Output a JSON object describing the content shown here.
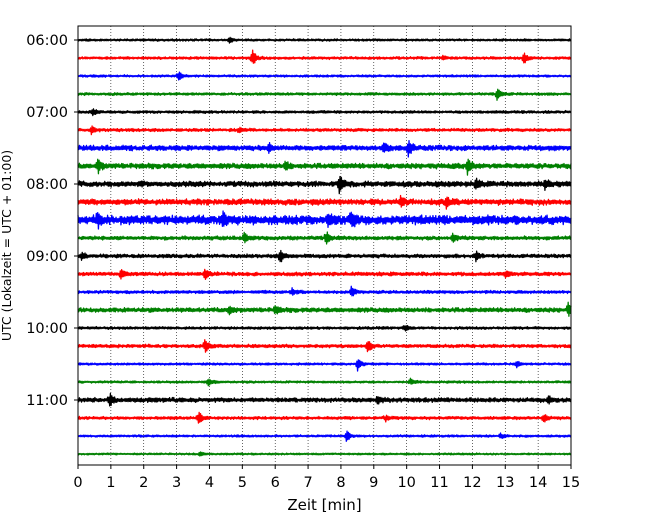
{
  "chart_data": {
    "type": "line",
    "xlabel": "Zeit  [min]",
    "ylabel": "UTC (Lokalzeit = UTC + 01:00)",
    "xlim": [
      0,
      15
    ],
    "x_ticks": [
      "0",
      "1",
      "2",
      "3",
      "4",
      "5",
      "6",
      "7",
      "8",
      "9",
      "10",
      "11",
      "12",
      "13",
      "14",
      "15"
    ],
    "y_tick_labels": [
      "06:00",
      "07:00",
      "08:00",
      "09:00",
      "10:00",
      "11:00"
    ],
    "grid_x": true,
    "trace_interval_min": 15,
    "colors": [
      "#000000",
      "#ff0000",
      "#0000ff",
      "#008000"
    ],
    "traces": [
      {
        "start": "06:00",
        "color": "#000000",
        "amp": 0.06,
        "events": [
          {
            "t": 4.6,
            "a": 0.2
          }
        ]
      },
      {
        "start": "06:15",
        "color": "#ff0000",
        "amp": 0.07,
        "events": [
          {
            "t": 5.3,
            "a": 0.65
          },
          {
            "t": 13.55,
            "a": 0.45
          },
          {
            "t": 11.1,
            "a": 0.15
          }
        ]
      },
      {
        "start": "06:30",
        "color": "#0000ff",
        "amp": 0.06,
        "events": [
          {
            "t": 3.05,
            "a": 0.35
          }
        ]
      },
      {
        "start": "06:45",
        "color": "#008000",
        "amp": 0.07,
        "events": [
          {
            "t": 12.75,
            "a": 0.55
          }
        ]
      },
      {
        "start": "07:00",
        "color": "#000000",
        "amp": 0.07,
        "events": [
          {
            "t": 0.45,
            "a": 0.3
          }
        ]
      },
      {
        "start": "07:15",
        "color": "#ff0000",
        "amp": 0.08,
        "events": [
          {
            "t": 0.4,
            "a": 0.3
          },
          {
            "t": 4.9,
            "a": 0.2
          }
        ]
      },
      {
        "start": "07:30",
        "color": "#0000ff",
        "amp": 0.14,
        "events": [
          {
            "t": 10.05,
            "a": 0.6
          },
          {
            "t": 5.8,
            "a": 0.3
          },
          {
            "t": 9.3,
            "a": 0.35
          }
        ]
      },
      {
        "start": "07:45",
        "color": "#008000",
        "amp": 0.14,
        "events": [
          {
            "t": 0.6,
            "a": 0.5
          },
          {
            "t": 11.85,
            "a": 0.6
          },
          {
            "t": 6.3,
            "a": 0.3
          }
        ]
      },
      {
        "start": "08:00",
        "color": "#000000",
        "amp": 0.15,
        "events": [
          {
            "t": 7.95,
            "a": 0.6
          },
          {
            "t": 12.1,
            "a": 0.35
          },
          {
            "t": 14.2,
            "a": 0.35
          }
        ]
      },
      {
        "start": "08:15",
        "color": "#ff0000",
        "amp": 0.16,
        "events": [
          {
            "t": 9.8,
            "a": 0.4
          },
          {
            "t": 11.2,
            "a": 0.4
          }
        ]
      },
      {
        "start": "08:30",
        "color": "#0000ff",
        "amp": 0.25,
        "events": [
          {
            "t": 8.3,
            "a": 0.7
          },
          {
            "t": 0.6,
            "a": 0.55
          },
          {
            "t": 4.4,
            "a": 0.5
          },
          {
            "t": 7.6,
            "a": 0.4
          }
        ]
      },
      {
        "start": "08:45",
        "color": "#008000",
        "amp": 0.1,
        "events": [
          {
            "t": 7.55,
            "a": 0.55
          },
          {
            "t": 5.05,
            "a": 0.45
          },
          {
            "t": 11.4,
            "a": 0.3
          }
        ]
      },
      {
        "start": "09:00",
        "color": "#000000",
        "amp": 0.1,
        "events": [
          {
            "t": 6.15,
            "a": 0.5
          },
          {
            "t": 12.1,
            "a": 0.35
          },
          {
            "t": 0.1,
            "a": 0.25
          }
        ]
      },
      {
        "start": "09:15",
        "color": "#ff0000",
        "amp": 0.1,
        "events": [
          {
            "t": 3.85,
            "a": 0.5
          },
          {
            "t": 13.0,
            "a": 0.3
          },
          {
            "t": 1.3,
            "a": 0.35
          }
        ]
      },
      {
        "start": "09:30",
        "color": "#0000ff",
        "amp": 0.08,
        "events": [
          {
            "t": 8.3,
            "a": 0.5
          },
          {
            "t": 6.5,
            "a": 0.3
          }
        ]
      },
      {
        "start": "09:45",
        "color": "#008000",
        "amp": 0.12,
        "events": [
          {
            "t": 14.9,
            "a": 0.55
          },
          {
            "t": 4.6,
            "a": 0.35
          },
          {
            "t": 6.0,
            "a": 0.3
          }
        ]
      },
      {
        "start": "10:00",
        "color": "#000000",
        "amp": 0.07,
        "events": [
          {
            "t": 9.95,
            "a": 0.25
          }
        ]
      },
      {
        "start": "10:15",
        "color": "#ff0000",
        "amp": 0.09,
        "events": [
          {
            "t": 3.85,
            "a": 0.55
          },
          {
            "t": 8.8,
            "a": 0.55
          }
        ]
      },
      {
        "start": "10:30",
        "color": "#0000ff",
        "amp": 0.06,
        "events": [
          {
            "t": 8.5,
            "a": 0.5
          },
          {
            "t": 13.35,
            "a": 0.25
          }
        ]
      },
      {
        "start": "10:45",
        "color": "#008000",
        "amp": 0.06,
        "events": [
          {
            "t": 3.95,
            "a": 0.35
          },
          {
            "t": 10.1,
            "a": 0.25
          }
        ]
      },
      {
        "start": "11:00",
        "color": "#000000",
        "amp": 0.12,
        "events": [
          {
            "t": 0.95,
            "a": 0.55
          },
          {
            "t": 9.1,
            "a": 0.3
          },
          {
            "t": 14.3,
            "a": 0.3
          }
        ]
      },
      {
        "start": "11:15",
        "color": "#ff0000",
        "amp": 0.08,
        "events": [
          {
            "t": 3.65,
            "a": 0.55
          },
          {
            "t": 14.15,
            "a": 0.35
          },
          {
            "t": 9.35,
            "a": 0.25
          }
        ]
      },
      {
        "start": "11:30",
        "color": "#0000ff",
        "amp": 0.06,
        "events": [
          {
            "t": 8.15,
            "a": 0.45
          },
          {
            "t": 12.85,
            "a": 0.2
          }
        ]
      },
      {
        "start": "11:45",
        "color": "#008000",
        "amp": 0.05,
        "events": [
          {
            "t": 3.7,
            "a": 0.2
          }
        ]
      }
    ]
  }
}
